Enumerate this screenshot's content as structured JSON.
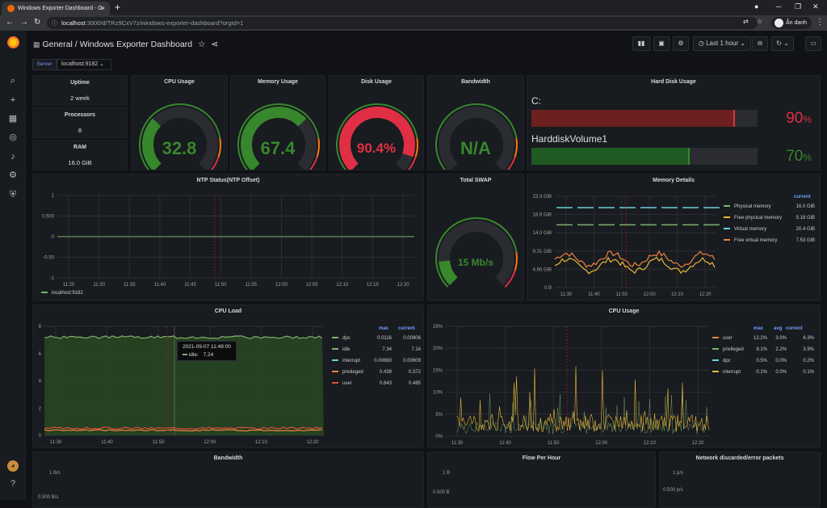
{
  "browser": {
    "tab_title": "Windows Exporter Dashboard - G",
    "url_host": "localhost",
    "url_rest": ":3000/d/TRz9CxV7z/windows-exporter-dashboard?orgId=1",
    "profile": "Ẩn danh"
  },
  "nav": {
    "breadcrumb_folder": "General",
    "breadcrumb_sep": "/",
    "dashboard_title": "Windows Exporter Dashboard",
    "time_range": "Last 1 hour"
  },
  "variables": {
    "server_label": "Server",
    "server_value": "localhost:9182"
  },
  "stats": {
    "uptime": {
      "title": "Uptime",
      "value": "2 week"
    },
    "processors": {
      "title": "Processors",
      "value": "8"
    },
    "ram": {
      "title": "RAM",
      "value": "16.0 GiB"
    }
  },
  "gauges": {
    "cpu": {
      "title": "CPU Usage",
      "value": "32.8",
      "fraction": 0.328,
      "color": "#37872d"
    },
    "memory": {
      "title": "Memory Usage",
      "value": "67.4",
      "fraction": 0.674,
      "color": "#37872d"
    },
    "disk": {
      "title": "Disk Usage",
      "value": "90.4%",
      "fraction": 0.904,
      "color": "#e02f44"
    },
    "bandwidth": {
      "title": "Bandwidth",
      "value": "N/A",
      "fraction": 0,
      "color": "#37872d"
    },
    "swap": {
      "title": "Total SWAP",
      "value": "15 Mb/s",
      "fraction": 0.15,
      "color": "#37872d"
    }
  },
  "hard_disk": {
    "title": "Hard Disk Usage",
    "items": [
      {
        "name": "C:",
        "percent": "90",
        "unit": "%",
        "fraction": 0.9,
        "color": "#e02f44",
        "bar": "#6e2020"
      },
      {
        "name": "HarddiskVolume1",
        "percent": "70",
        "unit": "%",
        "fraction": 0.7,
        "color": "#37872d",
        "bar": "#1f5a22"
      }
    ]
  },
  "ntp": {
    "title": "NTP Status(NTP Offset)",
    "yticks": [
      "1",
      "0.500",
      "0",
      "-0.50",
      "-1"
    ],
    "xticks": [
      "11:25",
      "11:30",
      "11:35",
      "11:40",
      "11:45",
      "11:50",
      "11:55",
      "12:00",
      "12:05",
      "12:10",
      "12:15",
      "12:20"
    ],
    "legend": "localhost:9182"
  },
  "memory_details": {
    "title": "Memory Details",
    "yticks": [
      "23.3 GiB",
      "18.6 GiB",
      "14.0 GiB",
      "9.31 GiB",
      "4.66 GiB",
      "0 B"
    ],
    "xticks": [
      "11:30",
      "11:40",
      "11:50",
      "12:00",
      "12:10",
      "12:20"
    ],
    "legend_header": "current",
    "legend": [
      {
        "name": "Physical memory",
        "current": "16.0 GiB",
        "color": "#7eb26d"
      },
      {
        "name": "Free physical memory",
        "current": "5.18 GiB",
        "color": "#eab839"
      },
      {
        "name": "Virtual memory",
        "current": "20.4 GiB",
        "color": "#6ed0e0"
      },
      {
        "name": "Free virtual memory",
        "current": "7.53 GiB",
        "color": "#ef843c"
      }
    ]
  },
  "cpu_load": {
    "title": "CPU Load",
    "yticks": [
      "8",
      "6",
      "4",
      "2",
      "0"
    ],
    "xticks": [
      "11:30",
      "11:40",
      "11:50",
      "12:00",
      "12:10",
      "12:20"
    ],
    "headers": [
      "max",
      "current"
    ],
    "legend": [
      {
        "name": "dpc",
        "max": "0.0116",
        "current": "0.00806",
        "color": "#7eb26d"
      },
      {
        "name": "idle",
        "max": "7.34",
        "current": "7.14",
        "color": "#7eb26d"
      },
      {
        "name": "interrupt",
        "max": "0.00680",
        "current": "0.00609",
        "color": "#6ed0e0"
      },
      {
        "name": "privileged",
        "max": "0.439",
        "current": "0.372",
        "color": "#ef843c"
      },
      {
        "name": "user",
        "max": "0.643",
        "current": "0.485",
        "color": "#e24d42"
      }
    ],
    "tooltip_time": "2021-09-07 11:49:00",
    "tooltip_label": "idle:",
    "tooltip_value": "7.24"
  },
  "cpu_usage": {
    "title": "CPU Usage",
    "yticks": [
      "25%",
      "20%",
      "15%",
      "10%",
      "5%",
      "0%"
    ],
    "xticks": [
      "11:30",
      "11:40",
      "11:50",
      "12:00",
      "12:10",
      "12:20"
    ],
    "headers": [
      "max",
      "avg",
      "current"
    ],
    "legend": [
      {
        "name": "user",
        "max": "12.2%",
        "avg": "3.0%",
        "current": "6.3%",
        "color": "#ef843c"
      },
      {
        "name": "privileged",
        "max": "9.1%",
        "avg": "2.2%",
        "current": "3.9%",
        "color": "#7eb26d"
      },
      {
        "name": "dpc",
        "max": "0.5%",
        "avg": "0.0%",
        "current": "0.2%",
        "color": "#6ed0e0"
      },
      {
        "name": "interrupt",
        "max": "0.1%",
        "avg": "0.0%",
        "current": "0.1%",
        "color": "#eab839"
      }
    ]
  },
  "bottom": {
    "bandwidth": {
      "title": "Bandwidth",
      "y1": "1 B/s",
      "y2": "0.500 B/s"
    },
    "flow": {
      "title": "Flow Per Hour",
      "y1": "1 B",
      "y2": "0.500 B"
    },
    "discard": {
      "title": "Network discarded/error packets",
      "y1": "1 p/s",
      "y2": "0.500 p/s"
    }
  }
}
